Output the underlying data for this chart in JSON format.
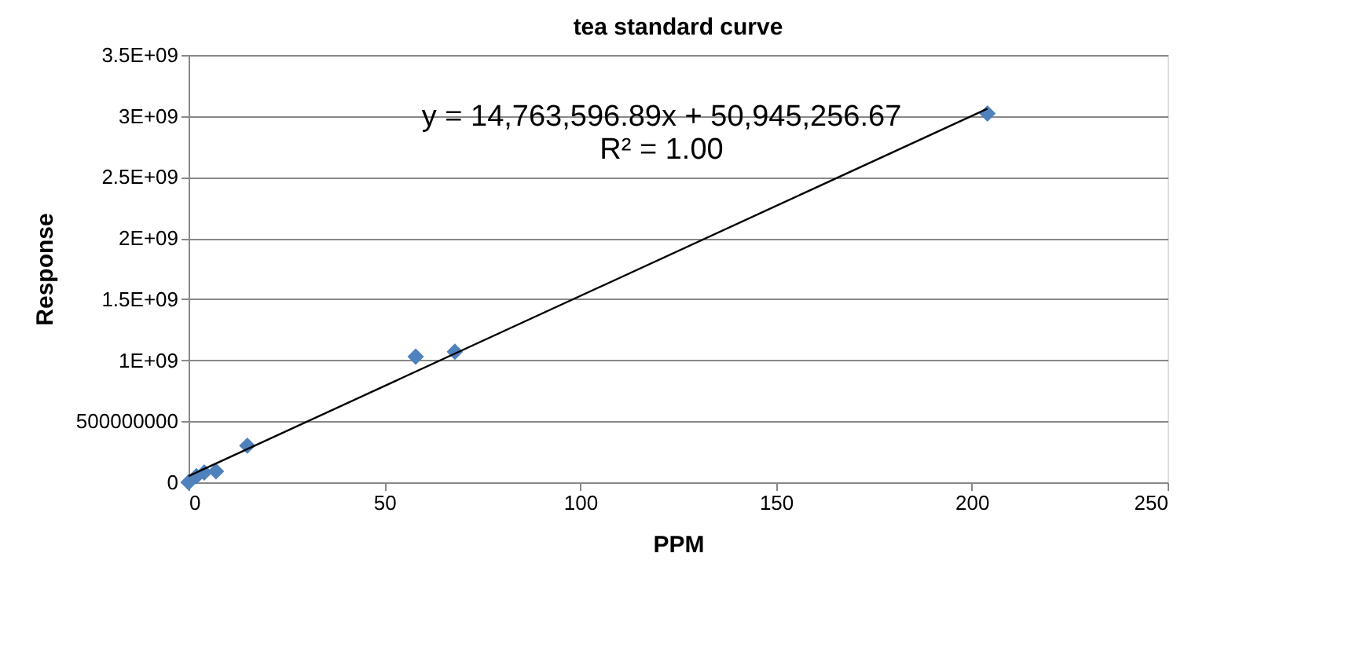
{
  "chart_data": {
    "type": "scatter",
    "title": "tea standard curve",
    "xlabel": "PPM",
    "ylabel": "Response",
    "xlim": [
      0,
      250
    ],
    "xticks": [
      0,
      50,
      100,
      150,
      200,
      250
    ],
    "ylim": [
      0,
      3500000000
    ],
    "yticks": [
      0,
      {
        "value": 500000000,
        "label": "500000000"
      },
      {
        "value": 1000000000,
        "label": "1E+09"
      },
      {
        "value": 1500000000,
        "label": "1.5E+09"
      },
      {
        "value": 2000000000,
        "label": "2E+09"
      },
      {
        "value": 2500000000,
        "label": "2.5E+09"
      },
      {
        "value": 3000000000,
        "label": "3E+09"
      },
      {
        "value": 3500000000,
        "label": "3.5E+09"
      }
    ],
    "grid": "y",
    "marker": "diamond",
    "series": [
      {
        "color": "#4f81bd",
        "x": [
          0,
          2,
          4,
          7,
          15,
          58,
          68,
          204
        ],
        "values": [
          0,
          50000000,
          80000000,
          90000000,
          300000000,
          1030000000,
          1070000000,
          3020000000
        ]
      },
      {
        "type": "line",
        "color": "#000000",
        "x": [
          0,
          204
        ],
        "values": [
          51000000,
          3060000000
        ],
        "marker": "none",
        "line_style": "solid"
      }
    ],
    "annotations": [
      "y = 14,763,596.89x + 50,945,256.67",
      "R² = 1.00"
    ]
  }
}
